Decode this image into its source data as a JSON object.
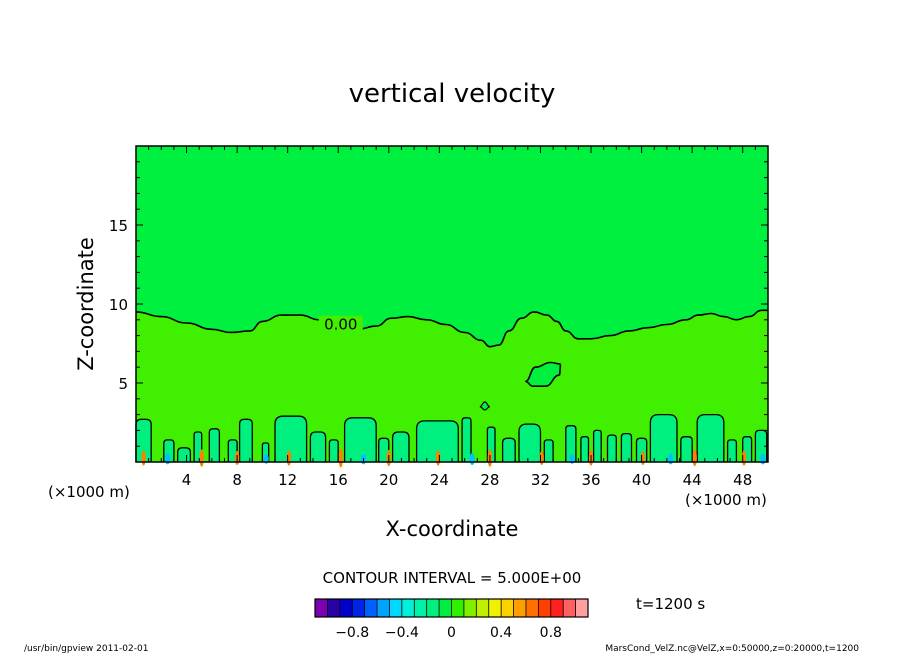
{
  "chart_data": {
    "type": "heatmap",
    "title": "vertical velocity",
    "xlabel": "X-coordinate",
    "ylabel": "Z-coordinate",
    "x_unit_left": "(×1000 m)",
    "x_unit_right": "(×1000 m)",
    "xlim": [
      0,
      50
    ],
    "ylim": [
      0,
      20
    ],
    "x_ticks": [
      "4",
      "8",
      "12",
      "16",
      "20",
      "24",
      "28",
      "32",
      "36",
      "40",
      "44",
      "48"
    ],
    "x_tick_values": [
      4,
      8,
      12,
      16,
      20,
      24,
      28,
      32,
      36,
      40,
      44,
      48
    ],
    "y_ticks": [
      "5",
      "10",
      "15"
    ],
    "y_tick_values": [
      5,
      10,
      15
    ],
    "contour_label": "0.00",
    "contour_label_pos": [
      16.2,
      8.5
    ],
    "zero_contour": {
      "x": [
        0,
        2,
        4,
        6,
        7.5,
        9,
        10,
        11.5,
        13,
        14.5,
        16,
        17.5,
        19,
        20.2,
        21.5,
        23,
        24.5,
        26,
        27.3,
        28,
        28.7,
        29.5,
        30.5,
        31.5,
        32.5,
        33.3,
        34,
        35,
        36,
        37.5,
        39,
        40.5,
        42,
        43.5,
        44.5,
        45.5,
        46.5,
        47.5,
        48.5,
        49.5,
        50
      ],
      "z": [
        9.5,
        9.2,
        8.8,
        8.4,
        8.2,
        8.3,
        8.9,
        9.3,
        9.3,
        9.0,
        8.6,
        8.4,
        8.6,
        9.1,
        9.2,
        9.0,
        8.7,
        8.2,
        7.7,
        7.3,
        7.4,
        8.3,
        9.1,
        9.5,
        9.3,
        8.9,
        8.3,
        7.8,
        7.8,
        8.0,
        8.3,
        8.5,
        8.7,
        9.0,
        9.3,
        9.4,
        9.2,
        9.0,
        9.2,
        9.6,
        9.6
      ]
    },
    "closed_contour_mid": {
      "x": [
        30.8,
        31.4,
        32.4,
        33.5,
        33.6,
        32.8,
        31.6,
        30.8
      ],
      "z": [
        5.1,
        4.8,
        4.8,
        5.5,
        6.2,
        6.3,
        6.0,
        5.1
      ]
    },
    "closed_contour_small": {
      "x": [
        27.2,
        27.6,
        28.0,
        27.6,
        27.2
      ],
      "z": [
        3.5,
        3.3,
        3.5,
        3.8,
        3.5
      ]
    },
    "boundary_cells": [
      {
        "x0": 0.0,
        "x1": 1.2,
        "h": 2.7
      },
      {
        "x0": 2.2,
        "x1": 3.0,
        "h": 1.4
      },
      {
        "x0": 3.3,
        "x1": 4.3,
        "h": 0.9
      },
      {
        "x0": 4.6,
        "x1": 5.2,
        "h": 1.9
      },
      {
        "x0": 5.8,
        "x1": 6.6,
        "h": 2.1
      },
      {
        "x0": 7.3,
        "x1": 8.0,
        "h": 1.4
      },
      {
        "x0": 8.2,
        "x1": 9.2,
        "h": 2.7
      },
      {
        "x0": 10.0,
        "x1": 10.5,
        "h": 1.2
      },
      {
        "x0": 11.0,
        "x1": 13.5,
        "h": 2.9
      },
      {
        "x0": 13.8,
        "x1": 15.0,
        "h": 1.9
      },
      {
        "x0": 15.3,
        "x1": 16.0,
        "h": 1.4
      },
      {
        "x0": 16.5,
        "x1": 19.0,
        "h": 2.8
      },
      {
        "x0": 19.2,
        "x1": 20.0,
        "h": 1.5
      },
      {
        "x0": 20.3,
        "x1": 21.6,
        "h": 1.9
      },
      {
        "x0": 22.2,
        "x1": 25.5,
        "h": 2.6
      },
      {
        "x0": 25.8,
        "x1": 26.5,
        "h": 2.8
      },
      {
        "x0": 27.8,
        "x1": 28.4,
        "h": 2.2
      },
      {
        "x0": 29.0,
        "x1": 30.0,
        "h": 1.5
      },
      {
        "x0": 30.3,
        "x1": 32.0,
        "h": 2.4
      },
      {
        "x0": 32.3,
        "x1": 33.0,
        "h": 1.4
      },
      {
        "x0": 34.0,
        "x1": 34.8,
        "h": 2.3
      },
      {
        "x0": 35.2,
        "x1": 35.8,
        "h": 1.6
      },
      {
        "x0": 36.2,
        "x1": 36.8,
        "h": 2.0
      },
      {
        "x0": 37.3,
        "x1": 38.0,
        "h": 1.7
      },
      {
        "x0": 38.4,
        "x1": 39.2,
        "h": 1.8
      },
      {
        "x0": 39.6,
        "x1": 40.4,
        "h": 1.5
      },
      {
        "x0": 40.7,
        "x1": 42.8,
        "h": 3.0
      },
      {
        "x0": 43.1,
        "x1": 44.0,
        "h": 1.6
      },
      {
        "x0": 44.4,
        "x1": 46.5,
        "h": 3.0
      },
      {
        "x0": 46.8,
        "x1": 47.5,
        "h": 1.4
      },
      {
        "x0": 48.0,
        "x1": 48.7,
        "h": 1.6
      },
      {
        "x0": 49.0,
        "x1": 49.9,
        "h": 2.0
      }
    ],
    "hot_spots": [
      {
        "x": 0.6,
        "v": 0.6
      },
      {
        "x": 5.2,
        "v": 0.8
      },
      {
        "x": 8.0,
        "v": 0.5
      },
      {
        "x": 12.1,
        "v": 0.6
      },
      {
        "x": 16.2,
        "v": 0.9
      },
      {
        "x": 20.0,
        "v": 0.7
      },
      {
        "x": 23.9,
        "v": 0.6
      },
      {
        "x": 28.0,
        "v": 0.8
      },
      {
        "x": 32.1,
        "v": 0.5
      },
      {
        "x": 36.0,
        "v": 0.6
      },
      {
        "x": 40.1,
        "v": 0.5
      },
      {
        "x": 44.2,
        "v": 0.7
      },
      {
        "x": 48.1,
        "v": 0.6
      }
    ],
    "cold_spots": [
      {
        "x": 2.5,
        "v": -0.4
      },
      {
        "x": 10.3,
        "v": -0.3
      },
      {
        "x": 18.0,
        "v": -0.4
      },
      {
        "x": 26.6,
        "v": -0.5
      },
      {
        "x": 34.5,
        "v": -0.3
      },
      {
        "x": 42.3,
        "v": -0.4
      },
      {
        "x": 49.6,
        "v": -0.4
      }
    ],
    "contour_interval_text": "CONTOUR INTERVAL = 5.000E+00",
    "time_text": "t=1200 s",
    "colorbar": {
      "colors": [
        "#7a00b0",
        "#2a00a8",
        "#0000c8",
        "#0024e6",
        "#0060ff",
        "#00a4ff",
        "#00d8ff",
        "#00f0d8",
        "#00f0a8",
        "#00f080",
        "#00ee44",
        "#30f000",
        "#80f000",
        "#c0f000",
        "#f0f000",
        "#ffd000",
        "#ffa000",
        "#ff7000",
        "#ff4000",
        "#ff2020",
        "#ff6060",
        "#ffa0a0"
      ],
      "tick_labels": [
        "-0.8",
        "-0.4",
        "0",
        "0.4",
        "0.8"
      ],
      "tick_values": [
        -0.8,
        -0.4,
        0,
        0.4,
        0.8
      ],
      "range": [
        -1.1,
        1.1
      ]
    },
    "field_colors": {
      "upper": "#00f040",
      "lower": "#40f000",
      "cells": "#00f080",
      "hot": "#ff8000",
      "cold": "#00c0ff"
    }
  },
  "footer": {
    "left": "/usr/bin/gpview   2011-02-01",
    "right": "MarsCond_VelZ.nc@VelZ,x=0:50000,z=0:20000,t=1200"
  }
}
